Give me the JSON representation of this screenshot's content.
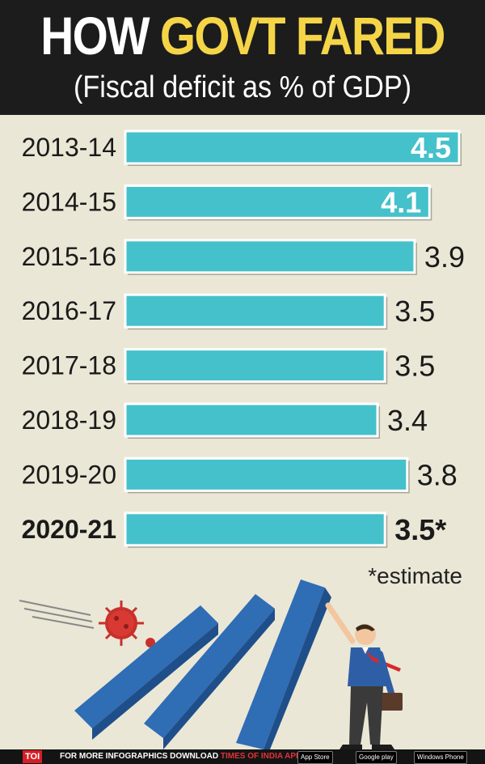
{
  "header": {
    "title_part1": "HOW ",
    "title_part2": "GOVT FARED",
    "subtitle": "(Fiscal deficit as % of GDP)"
  },
  "chart_data": {
    "type": "bar",
    "orientation": "horizontal",
    "categories": [
      "2013-14",
      "2014-15",
      "2015-16",
      "2016-17",
      "2017-18",
      "2018-19",
      "2019-20",
      "2020-21"
    ],
    "values": [
      4.5,
      4.1,
      3.9,
      3.5,
      3.5,
      3.4,
      3.8,
      3.5
    ],
    "value_labels": [
      "4.5",
      "4.1",
      "3.9",
      "3.5",
      "3.5",
      "3.4",
      "3.8",
      "3.5*"
    ],
    "highlight_index": 7,
    "bar_color": "#45c1cb",
    "xlim": [
      0,
      4.5
    ],
    "grid": false
  },
  "note": "*estimate",
  "footer": {
    "brand": "TOI",
    "promo_text": "FOR MORE  INFOGRAPHICS DOWNLOAD ",
    "promo_app": "TIMES OF INDIA  APP",
    "store_apple": "App Store",
    "store_google": "Google play",
    "store_windows": "Windows Phone"
  },
  "colors": {
    "background": "#ebe7d6",
    "header_bg": "#1c1c1c",
    "title_highlight": "#f5d548",
    "domino": "#2f6db5",
    "virus": "#c8302c"
  }
}
